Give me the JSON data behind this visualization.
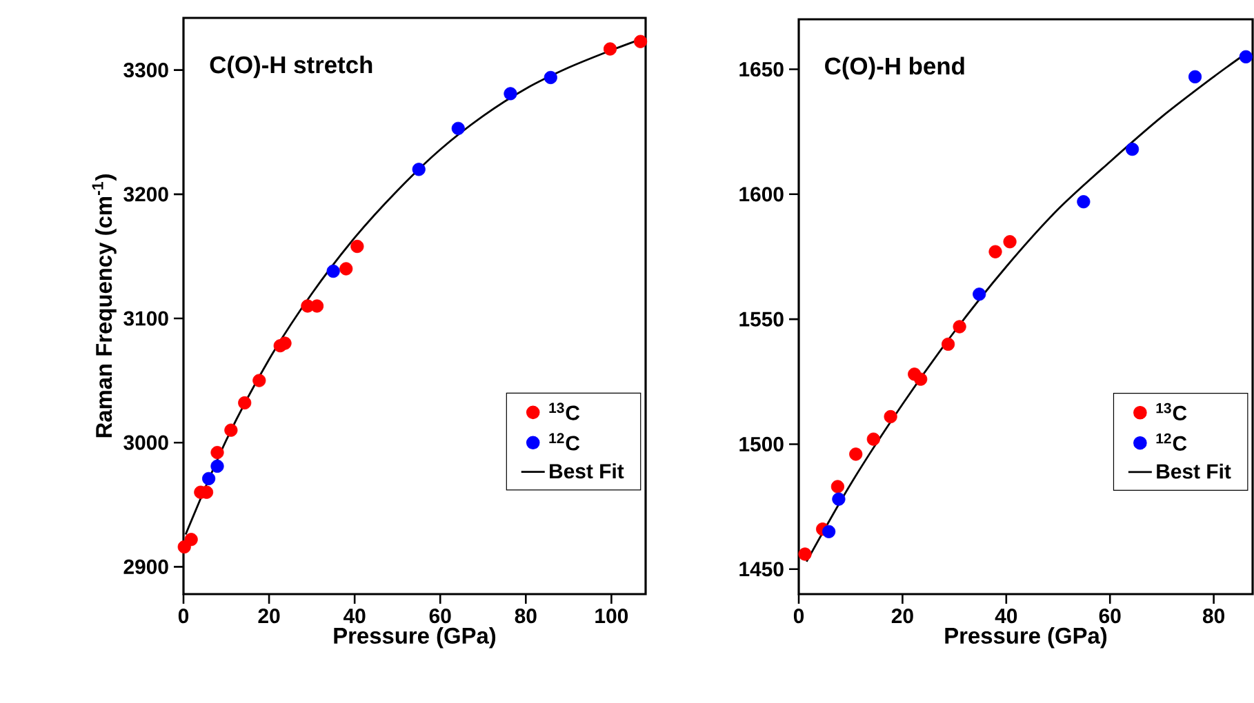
{
  "chart_data": [
    {
      "type": "scatter",
      "title": "C(O)-H stretch",
      "xlabel": "Pressure (GPa)",
      "ylabel": "Raman Frequency (cm$^{-1}$)",
      "xlim": [
        0,
        108
      ],
      "ylim": [
        2878,
        3342
      ],
      "xticks": [
        0,
        20,
        40,
        60,
        80,
        100
      ],
      "yticks": [
        2900,
        3000,
        3100,
        3200,
        3300
      ],
      "grid": false,
      "legend": "right",
      "series": [
        {
          "name": "$^{13}$C",
          "color": "#ff0000",
          "marker": "circle",
          "x": [
            0.2,
            1.8,
            4,
            5.4,
            7.9,
            11.1,
            14.3,
            17.7,
            22.6,
            23.7,
            29,
            31.2,
            38,
            40.6,
            99.7,
            106.8
          ],
          "values": [
            2916,
            2922,
            2960,
            2960,
            2992,
            3010,
            3032,
            3050,
            3078,
            3080,
            3110,
            3110,
            3140,
            3158,
            3317,
            3323
          ]
        },
        {
          "name": "$^{12}$C",
          "color": "#0000ff",
          "marker": "circle",
          "x": [
            5.9,
            7.9,
            35,
            55,
            64.2,
            76.4,
            85.8
          ],
          "values": [
            2971,
            2981,
            3138,
            3220,
            3253,
            3281,
            3294
          ]
        },
        {
          "name": "Best Fit",
          "type": "line",
          "color": "#000000",
          "marker": "none",
          "line_style": "solid",
          "x": [
            0.5,
            10,
            20,
            30,
            40,
            50,
            60,
            70,
            80,
            90,
            100,
            107
          ],
          "values": [
            2926,
            3002,
            3067,
            3120,
            3165,
            3203,
            3236,
            3263,
            3285,
            3302,
            3316,
            3325
          ]
        }
      ]
    },
    {
      "type": "scatter",
      "title": "C(O)-H bend",
      "xlabel": "Pressure (GPa)",
      "xlim": [
        0,
        87.5
      ],
      "ylim": [
        1440,
        1670
      ],
      "xticks": [
        0,
        20,
        40,
        60,
        80
      ],
      "yticks": [
        1450,
        1500,
        1550,
        1600,
        1650
      ],
      "grid": false,
      "legend": "right",
      "series": [
        {
          "name": "$^{13}$C",
          "color": "#ff0000",
          "marker": "circle",
          "x": [
            1.2,
            4.6,
            7.5,
            11,
            14.4,
            17.7,
            22.3,
            23.5,
            28.8,
            31,
            37.9,
            40.7
          ],
          "values": [
            1456,
            1466,
            1483,
            1496,
            1502,
            1511,
            1528,
            1526,
            1540,
            1547,
            1577,
            1581
          ]
        },
        {
          "name": "$^{12}$C",
          "color": "#0000ff",
          "marker": "circle",
          "x": [
            5.8,
            7.7,
            34.8,
            54.9,
            64.3,
            76.4,
            86.2
          ],
          "values": [
            1465,
            1478,
            1560,
            1597,
            1618,
            1647,
            1655
          ]
        },
        {
          "name": "Best Fit",
          "type": "line",
          "color": "#000000",
          "marker": "none",
          "line_style": "solid",
          "x": [
            1.5,
            10,
            20,
            30,
            40,
            50,
            60,
            70,
            80,
            86
          ],
          "values": [
            1453,
            1484,
            1516,
            1545,
            1571,
            1594,
            1613,
            1631,
            1647,
            1656
          ]
        }
      ]
    }
  ]
}
